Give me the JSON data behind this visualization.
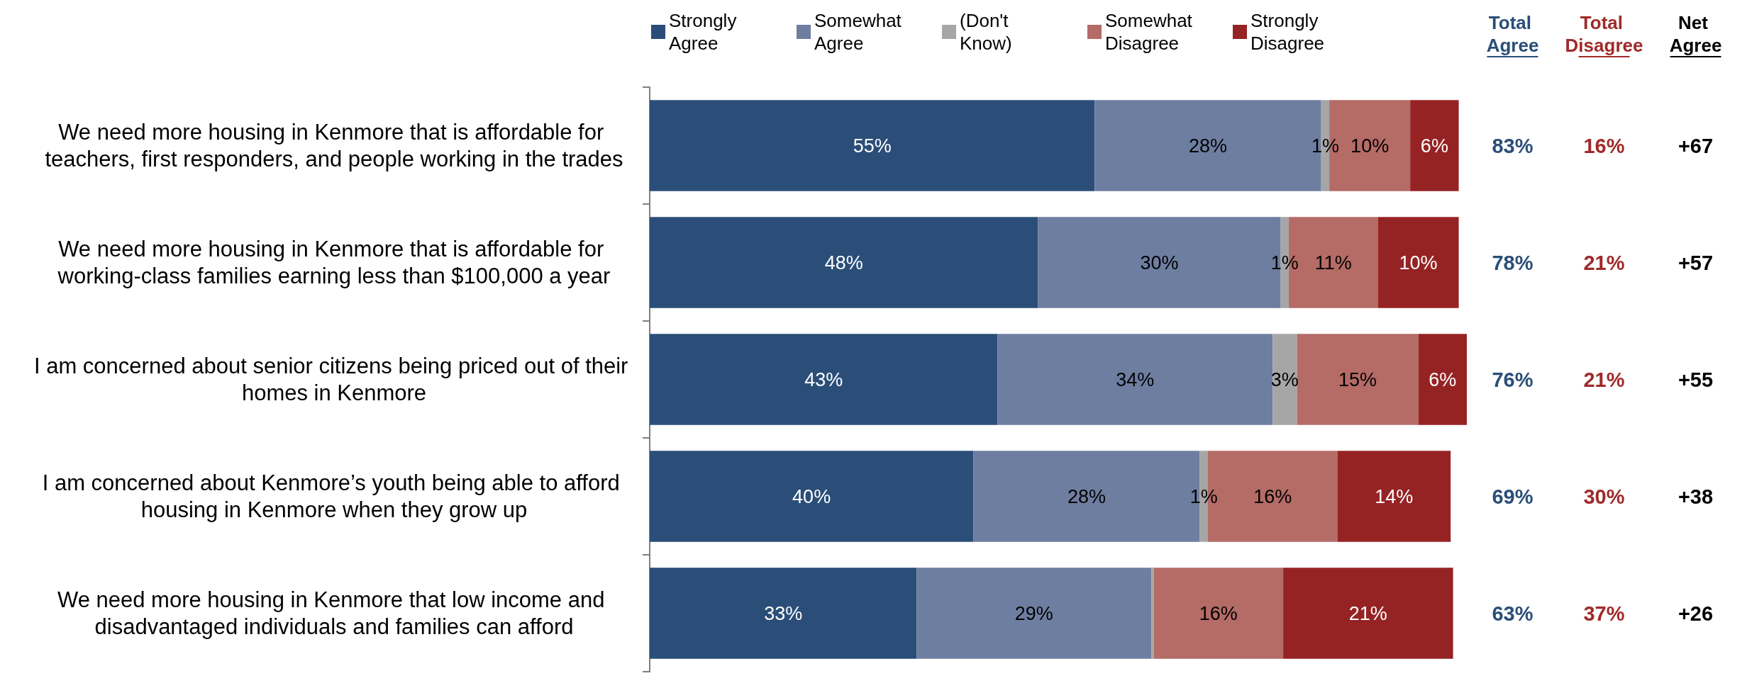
{
  "chart_data": [
    {
      "type": "bar",
      "orientation": "horizontal",
      "stacked": true,
      "legend": "top",
      "categories": [
        "We need more housing in Kenmore that is affordable for teachers, first responders, and people working in the trades",
        "We need more housing in Kenmore that is affordable for working-class families earning less than $100,000 a year",
        "I am concerned about senior citizens being priced out of their homes in Kenmore",
        "I am concerned about Kenmore’s youth being able to afford housing in Kenmore when they grow up",
        "We need more housing in Kenmore that low income and disadvantaged individuals and families can afford"
      ],
      "series": [
        {
          "name": "Strongly Agree",
          "color": "#2a4e78",
          "values": [
            55,
            48,
            43,
            40,
            33
          ],
          "value_labels": [
            "55%",
            "48%",
            "43%",
            "40%",
            "33%"
          ]
        },
        {
          "name": "Somewhat Agree",
          "color": "#6e7ea1",
          "values": [
            28,
            30,
            34,
            28,
            29
          ],
          "value_labels": [
            "28%",
            "30%",
            "34%",
            "28%",
            "29%"
          ]
        },
        {
          "name": "(Don't Know)",
          "color": "#a6a6a6",
          "values": [
            1,
            1,
            3,
            1,
            0.3
          ],
          "value_labels": [
            "1%",
            "1%",
            "3%",
            "1%",
            null
          ]
        },
        {
          "name": "Somewhat Disagree",
          "color": "#b56b66",
          "values": [
            10,
            11,
            15,
            16,
            16
          ],
          "value_labels": [
            "10%",
            "11%",
            "15%",
            "16%",
            "16%"
          ]
        },
        {
          "name": "Strongly Disagree",
          "color": "#962324",
          "values": [
            6,
            10,
            6,
            14,
            21
          ],
          "value_labels": [
            "6%",
            "10%",
            "6%",
            "14%",
            "21%"
          ]
        }
      ]
    },
    {
      "type": "other",
      "colors": [
        "#2a4e78",
        "#a02a2a",
        "#000000"
      ],
      "annotations": [
        "Total Agree",
        "Total Disagree",
        "Net Agree",
        "83%",
        "16%",
        "+67",
        "78%",
        "21%",
        "+57",
        "76%",
        "21%",
        "+55",
        "69%",
        "30%",
        "+38",
        "63%",
        "37%",
        "+26"
      ]
    }
  ]
}
